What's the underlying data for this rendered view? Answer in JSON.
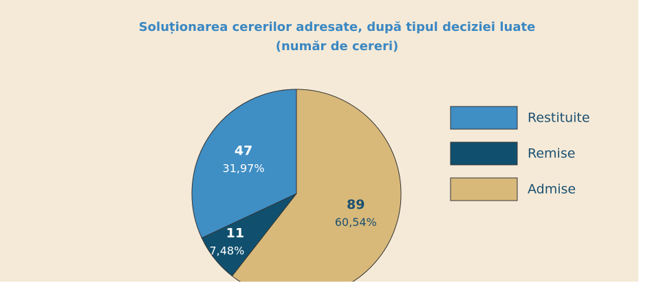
{
  "chart_data": {
    "type": "pie",
    "title": "Soluționarea cererilor adresate, după tipul deciziei luate",
    "subtitle": "(număr de cereri)",
    "categories": [
      "Restituite",
      "Remise",
      "Admise"
    ],
    "values": [
      47,
      11,
      89
    ],
    "percentages": [
      31.97,
      7.48,
      60.54
    ],
    "percentage_labels": [
      "31,97%",
      "7,48%",
      "60,54%"
    ],
    "colors": [
      "#3f8ec4",
      "#10506e",
      "#d8b97a"
    ],
    "legend": "right"
  }
}
